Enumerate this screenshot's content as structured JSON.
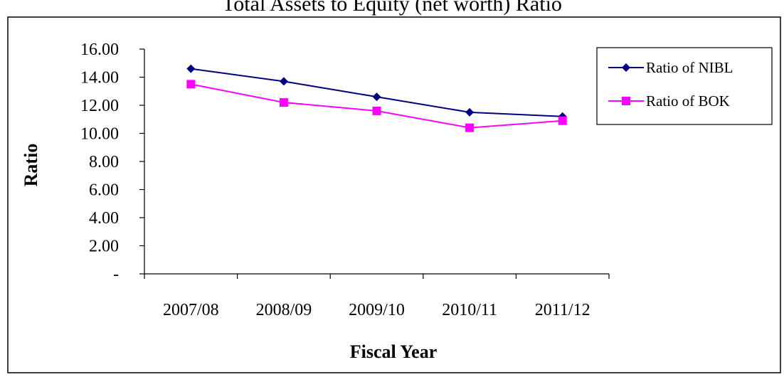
{
  "chart_data": {
    "type": "line",
    "title": "Total Assets to Equity (net worth) Ratio",
    "xlabel": "Fiscal Year",
    "ylabel": "Ratio",
    "categories": [
      "2007/08",
      "2008/09",
      "2009/10",
      "2010/11",
      "2011/12"
    ],
    "yticks": [
      "-",
      "2.00",
      "4.00",
      "6.00",
      "8.00",
      "10.00",
      "12.00",
      "14.00",
      "16.00"
    ],
    "ylim": [
      0,
      16
    ],
    "grid": false,
    "legend_position": "top-right",
    "series": [
      {
        "name": "Ratio of NIBL",
        "values": [
          14.6,
          13.7,
          12.6,
          11.5,
          11.2
        ],
        "color": "#000080",
        "marker": "diamond"
      },
      {
        "name": "Ratio of BOK",
        "values": [
          13.5,
          12.2,
          11.6,
          10.4,
          10.9
        ],
        "color": "#FF00FF",
        "marker": "square"
      }
    ]
  }
}
